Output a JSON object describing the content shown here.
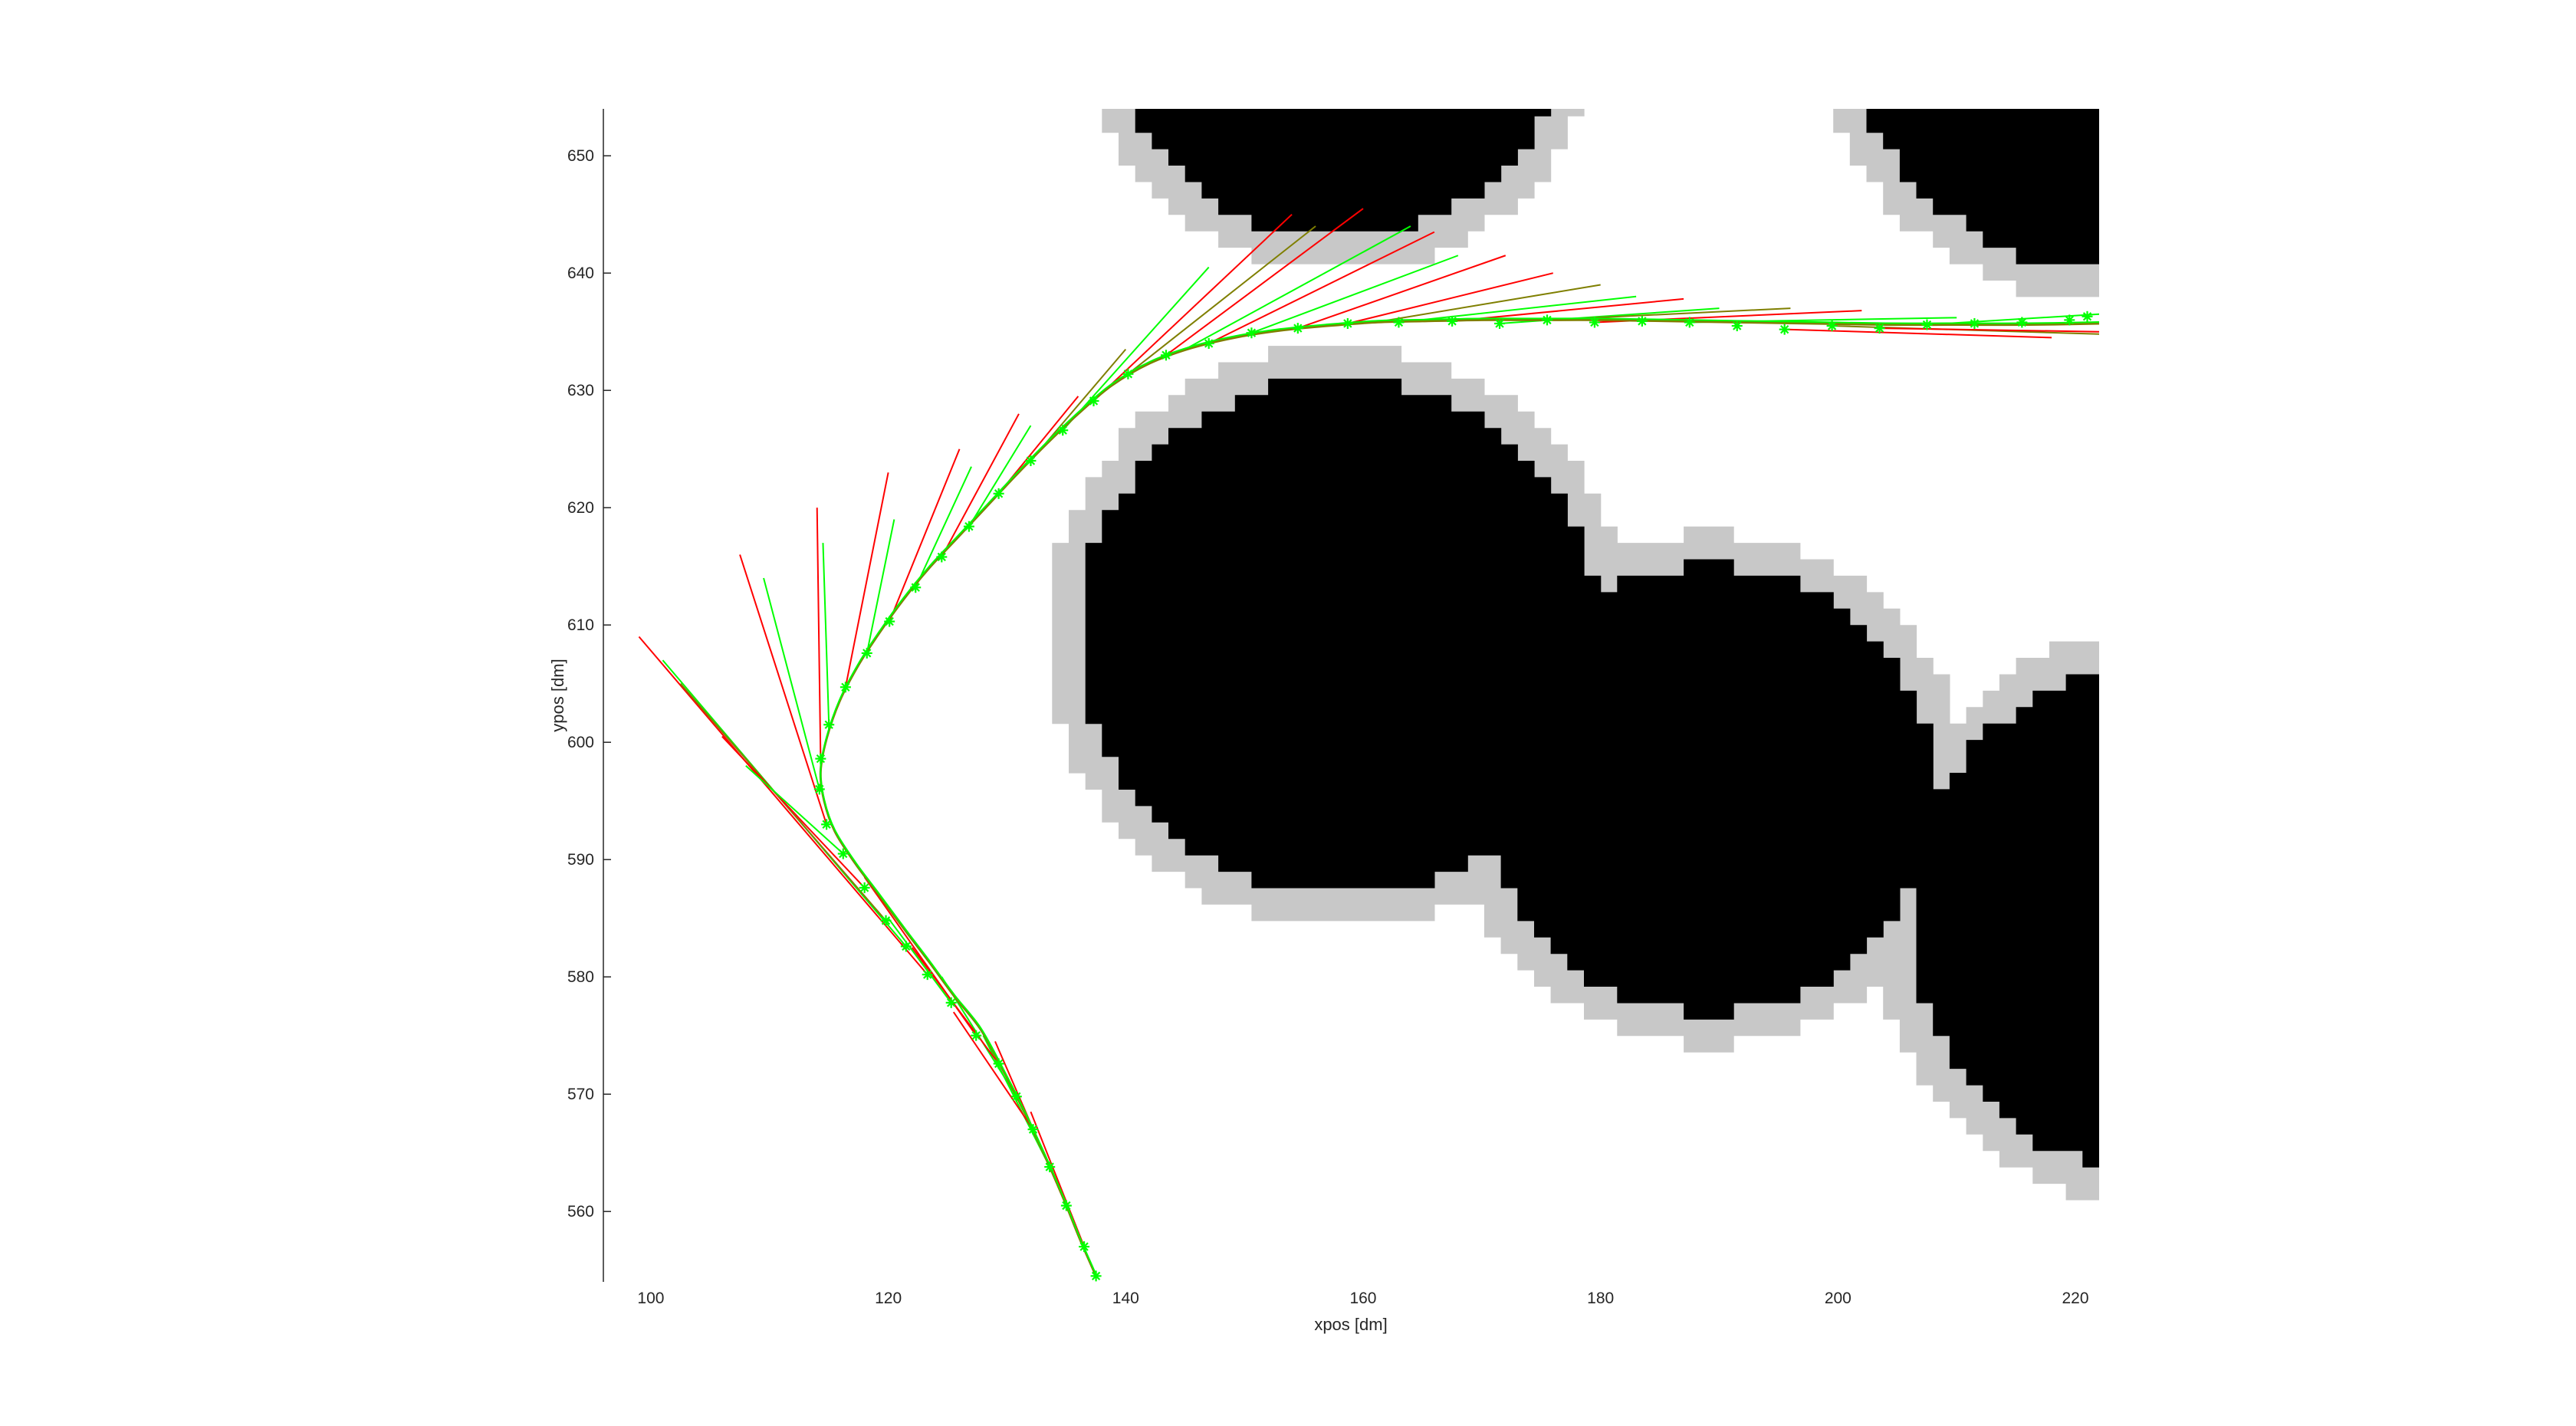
{
  "chart_data": {
    "type": "scatter",
    "title": "",
    "xlabel": "xpos [dm]",
    "ylabel": "ypos [dm]",
    "xlim": [
      96,
      222
    ],
    "ylim": [
      554,
      654
    ],
    "x_ticks": [
      100,
      120,
      140,
      160,
      180,
      200,
      220
    ],
    "y_ticks": [
      560,
      570,
      580,
      590,
      600,
      610,
      620,
      630,
      640,
      650
    ],
    "grid": false,
    "legend": "none",
    "colors": {
      "obstacle": "#000000",
      "inflation": "#c8c8c8",
      "trajectory_green": "#00ff00",
      "trajectory_red": "#ff0000",
      "trajectory_olive": "#7f7f00",
      "axis": "#262626"
    },
    "obstacles": [
      {
        "cx": 158,
        "cy": 662,
        "r": 19,
        "inflation": 2.8
      },
      {
        "cx": 224,
        "cy": 664,
        "r": 24,
        "inflation": 2.8
      },
      {
        "cx": 158,
        "cy": 609,
        "r": 22,
        "inflation": 2.8
      },
      {
        "cx": 189,
        "cy": 596,
        "r": 19,
        "inflation": 2.8
      },
      {
        "cx": 228,
        "cy": 585,
        "r": 22,
        "inflation": 2.8
      }
    ],
    "path": [
      [
        137.5,
        554.5
      ],
      [
        136.2,
        557.5
      ],
      [
        134.8,
        561.0
      ],
      [
        133.3,
        564.5
      ],
      [
        131.6,
        568.2
      ],
      [
        129.8,
        571.8
      ],
      [
        127.8,
        575.5
      ],
      [
        125.6,
        578.3
      ],
      [
        123.5,
        581.2
      ],
      [
        121.4,
        584.0
      ],
      [
        119.2,
        587.0
      ],
      [
        117.2,
        589.7
      ],
      [
        115.5,
        592.4
      ],
      [
        114.6,
        595.0
      ],
      [
        114.3,
        597.5
      ],
      [
        114.8,
        600.3
      ],
      [
        115.9,
        603.5
      ],
      [
        117.5,
        606.6
      ],
      [
        119.3,
        609.4
      ],
      [
        121.3,
        612.2
      ],
      [
        123.4,
        614.8
      ],
      [
        125.8,
        617.4
      ],
      [
        128.2,
        620.0
      ],
      [
        130.7,
        622.7
      ],
      [
        133.3,
        625.4
      ],
      [
        136.0,
        628.0
      ],
      [
        138.8,
        630.4
      ],
      [
        142.0,
        632.3
      ],
      [
        145.5,
        633.6
      ],
      [
        149.2,
        634.5
      ],
      [
        153.0,
        635.1
      ],
      [
        157.0,
        635.5
      ],
      [
        161.0,
        635.8
      ],
      [
        165.0,
        635.9
      ],
      [
        170.0,
        636.0
      ],
      [
        175.0,
        636.0
      ],
      [
        180.0,
        636.0
      ],
      [
        186.0,
        635.9
      ],
      [
        192.0,
        635.8
      ],
      [
        198.0,
        635.7
      ],
      [
        204.0,
        635.6
      ],
      [
        210.0,
        635.6
      ],
      [
        216.0,
        635.6
      ],
      [
        222.0,
        635.7
      ]
    ],
    "markers": [
      [
        137.5,
        554.5
      ],
      [
        136.5,
        557.0
      ],
      [
        135.0,
        560.5
      ],
      [
        133.6,
        563.8
      ],
      [
        132.2,
        567.0
      ],
      [
        130.8,
        569.8
      ],
      [
        129.3,
        572.6
      ],
      [
        127.4,
        575.0
      ],
      [
        125.3,
        577.8
      ],
      [
        123.3,
        580.2
      ],
      [
        121.5,
        582.6
      ],
      [
        119.8,
        584.8
      ],
      [
        118.0,
        587.6
      ],
      [
        116.2,
        590.5
      ],
      [
        114.8,
        593.0
      ],
      [
        114.2,
        596.0
      ],
      [
        114.3,
        598.6
      ],
      [
        115.0,
        601.5
      ],
      [
        116.4,
        604.7
      ],
      [
        118.2,
        607.6
      ],
      [
        120.1,
        610.3
      ],
      [
        122.3,
        613.2
      ],
      [
        124.5,
        615.8
      ],
      [
        126.8,
        618.4
      ],
      [
        129.3,
        621.2
      ],
      [
        132.0,
        624.0
      ],
      [
        134.7,
        626.6
      ],
      [
        137.3,
        629.1
      ],
      [
        140.2,
        631.4
      ],
      [
        143.4,
        633.0
      ],
      [
        147.0,
        634.0
      ],
      [
        150.6,
        634.9
      ],
      [
        154.5,
        635.3
      ],
      [
        158.7,
        635.7
      ],
      [
        163.0,
        635.8
      ],
      [
        167.5,
        635.9
      ],
      [
        171.5,
        635.7
      ],
      [
        175.5,
        636.0
      ],
      [
        179.5,
        635.8
      ],
      [
        183.5,
        635.9
      ],
      [
        187.5,
        635.8
      ],
      [
        191.5,
        635.5
      ],
      [
        195.5,
        635.2
      ],
      [
        199.5,
        635.5
      ],
      [
        203.5,
        635.3
      ],
      [
        207.5,
        635.6
      ],
      [
        211.5,
        635.7
      ],
      [
        215.5,
        635.8
      ],
      [
        219.5,
        636.0
      ],
      [
        221.0,
        636.3
      ]
    ],
    "prediction_rays": [
      {
        "from": [
          136.5,
          557.0
        ],
        "to": [
          132.0,
          568.5
        ],
        "color": "red"
      },
      {
        "from": [
          135.0,
          560.5
        ],
        "to": [
          129.0,
          574.5
        ],
        "color": "red"
      },
      {
        "from": [
          133.6,
          563.8
        ],
        "to": [
          128.0,
          575.0
        ],
        "color": "green"
      },
      {
        "from": [
          132.2,
          567.0
        ],
        "to": [
          125.5,
          577.0
        ],
        "color": "red"
      },
      {
        "from": [
          130.8,
          569.8
        ],
        "to": [
          124.5,
          580.0
        ],
        "color": "green"
      },
      {
        "from": [
          129.3,
          572.6
        ],
        "to": [
          122.0,
          582.5
        ],
        "color": "red"
      },
      {
        "from": [
          127.4,
          575.0
        ],
        "to": [
          118.0,
          588.5
        ],
        "color": "red"
      },
      {
        "from": [
          125.3,
          577.8
        ],
        "to": [
          120.0,
          585.0
        ],
        "color": "green"
      },
      {
        "from": [
          123.3,
          580.2
        ],
        "to": [
          99.0,
          609.0
        ],
        "color": "red"
      },
      {
        "from": [
          121.5,
          582.6
        ],
        "to": [
          101.0,
          607.0
        ],
        "color": "green"
      },
      {
        "from": [
          119.8,
          584.8
        ],
        "to": [
          102.5,
          605.0
        ],
        "color": "olive"
      },
      {
        "from": [
          118.0,
          587.6
        ],
        "to": [
          106.0,
          600.5
        ],
        "color": "red"
      },
      {
        "from": [
          116.2,
          590.5
        ],
        "to": [
          108.0,
          598.0
        ],
        "color": "green"
      },
      {
        "from": [
          114.8,
          593.0
        ],
        "to": [
          107.5,
          616.0
        ],
        "color": "red"
      },
      {
        "from": [
          114.2,
          596.0
        ],
        "to": [
          109.5,
          614.0
        ],
        "color": "green"
      },
      {
        "from": [
          114.3,
          598.6
        ],
        "to": [
          114.0,
          620.0
        ],
        "color": "red"
      },
      {
        "from": [
          115.0,
          601.5
        ],
        "to": [
          114.5,
          617.0
        ],
        "color": "green"
      },
      {
        "from": [
          116.4,
          604.7
        ],
        "to": [
          120.0,
          623.0
        ],
        "color": "red"
      },
      {
        "from": [
          118.2,
          607.6
        ],
        "to": [
          120.5,
          619.0
        ],
        "color": "green"
      },
      {
        "from": [
          120.1,
          610.3
        ],
        "to": [
          126.0,
          625.0
        ],
        "color": "red"
      },
      {
        "from": [
          122.3,
          613.2
        ],
        "to": [
          127.0,
          623.5
        ],
        "color": "green"
      },
      {
        "from": [
          124.5,
          615.8
        ],
        "to": [
          131.0,
          628.0
        ],
        "color": "red"
      },
      {
        "from": [
          126.8,
          618.4
        ],
        "to": [
          132.0,
          627.0
        ],
        "color": "green"
      },
      {
        "from": [
          129.3,
          621.2
        ],
        "to": [
          136.0,
          629.5
        ],
        "color": "red"
      },
      {
        "from": [
          132.0,
          624.0
        ],
        "to": [
          140.0,
          633.5
        ],
        "color": "olive"
      },
      {
        "from": [
          134.7,
          626.6
        ],
        "to": [
          147.0,
          640.5
        ],
        "color": "green"
      },
      {
        "from": [
          137.3,
          629.1
        ],
        "to": [
          154.0,
          645.0
        ],
        "color": "red"
      },
      {
        "from": [
          140.2,
          631.4
        ],
        "to": [
          156.0,
          644.0
        ],
        "color": "olive"
      },
      {
        "from": [
          143.4,
          633.0
        ],
        "to": [
          160.0,
          645.5
        ],
        "color": "red"
      },
      {
        "from": [
          145.0,
          633.5
        ],
        "to": [
          164.0,
          644.0
        ],
        "color": "green"
      },
      {
        "from": [
          147.0,
          634.0
        ],
        "to": [
          166.0,
          643.5
        ],
        "color": "red"
      },
      {
        "from": [
          150.6,
          634.9
        ],
        "to": [
          168.0,
          641.5
        ],
        "color": "green"
      },
      {
        "from": [
          154.5,
          635.3
        ],
        "to": [
          172.0,
          641.5
        ],
        "color": "red"
      },
      {
        "from": [
          158.7,
          635.7
        ],
        "to": [
          176.0,
          640.0
        ],
        "color": "red"
      },
      {
        "from": [
          161.0,
          635.8
        ],
        "to": [
          180.0,
          639.0
        ],
        "color": "olive"
      },
      {
        "from": [
          163.0,
          635.8
        ],
        "to": [
          183.0,
          638.0
        ],
        "color": "green"
      },
      {
        "from": [
          167.5,
          635.9
        ],
        "to": [
          187.0,
          637.8
        ],
        "color": "red"
      },
      {
        "from": [
          171.5,
          635.7
        ],
        "to": [
          190.0,
          637.0
        ],
        "color": "green"
      },
      {
        "from": [
          175.5,
          636.0
        ],
        "to": [
          196.0,
          637.0
        ],
        "color": "olive"
      },
      {
        "from": [
          179.5,
          635.8
        ],
        "to": [
          202.0,
          636.8
        ],
        "color": "red"
      },
      {
        "from": [
          187.5,
          635.8
        ],
        "to": [
          210.0,
          636.2
        ],
        "color": "green"
      },
      {
        "from": [
          195.5,
          635.2
        ],
        "to": [
          218.0,
          634.5
        ],
        "color": "red"
      },
      {
        "from": [
          199.5,
          635.5
        ],
        "to": [
          222.0,
          634.8
        ],
        "color": "olive"
      },
      {
        "from": [
          203.5,
          635.3
        ],
        "to": [
          222.0,
          635.0
        ],
        "color": "red"
      },
      {
        "from": [
          207.5,
          635.6
        ],
        "to": [
          222.0,
          636.5
        ],
        "color": "green"
      }
    ]
  }
}
